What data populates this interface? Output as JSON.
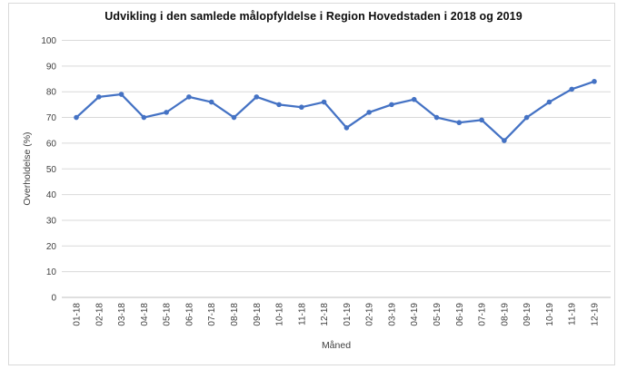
{
  "window": {
    "background": "#ffffff",
    "frame_border_color": "#d9d9d9"
  },
  "chart_data": {
    "type": "line",
    "title": "Udvikling i den samlede målopfyldelse i Region Hovedstaden i 2018 og 2019",
    "xlabel": "Måned",
    "ylabel": "Overholdelse (%)",
    "categories": [
      "01-18",
      "02-18",
      "03-18",
      "04-18",
      "05-18",
      "06-18",
      "07-18",
      "08-18",
      "09-18",
      "10-18",
      "11-18",
      "12-18",
      "01-19",
      "02-19",
      "03-19",
      "04-19",
      "05-19",
      "06-19",
      "07-19",
      "08-19",
      "09-19",
      "10-19",
      "11-19",
      "12-19"
    ],
    "series": [
      {
        "name": "Overholdelse (%)",
        "values": [
          70,
          78,
          79,
          70,
          72,
          78,
          76,
          70,
          78,
          75,
          74,
          76,
          66,
          72,
          75,
          77,
          70,
          68,
          69,
          61,
          70,
          76,
          81,
          84
        ]
      }
    ],
    "ylim": [
      0,
      100
    ],
    "ytick_step": 10,
    "grid": "horizontal",
    "legend": "none",
    "styles": {
      "line_color": "#4472C4",
      "marker": "circle",
      "gridline_color": "#d9d9d9",
      "axis_line_color": "#bfbfbf",
      "tick_label_color": "#404040",
      "axis_title_color": "#404040",
      "title_color": "#0d0d0d"
    }
  }
}
